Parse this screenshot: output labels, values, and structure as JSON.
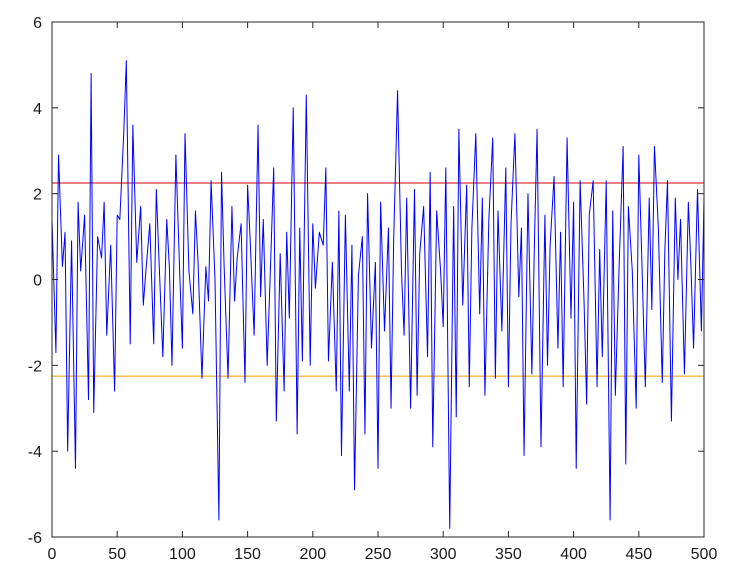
{
  "chart_data": {
    "type": "line",
    "title": "",
    "xlabel": "",
    "ylabel": "",
    "xlim": [
      0,
      500
    ],
    "ylim": [
      -6,
      6
    ],
    "grid": false,
    "legend": "none",
    "xticks": [
      0,
      50,
      100,
      150,
      200,
      250,
      300,
      350,
      400,
      450,
      500
    ],
    "yticks": [
      -6,
      -4,
      -2,
      0,
      2,
      4,
      6
    ],
    "xtick_labels": [
      "0",
      "50",
      "100",
      "150",
      "200",
      "250",
      "300",
      "350",
      "400",
      "450",
      "500"
    ],
    "ytick_labels": [
      "-6",
      "-4",
      "-2",
      "0",
      "2",
      "4",
      "6"
    ],
    "hlines": [
      {
        "y": 2.25,
        "color": "#d40000"
      },
      {
        "y": -2.25,
        "color": "#e8a000"
      }
    ],
    "series": [
      {
        "color": "#0000ff",
        "x": [
          0,
          3,
          5,
          8,
          10,
          12,
          15,
          18,
          20,
          22,
          25,
          28,
          30,
          32,
          35,
          38,
          40,
          42,
          45,
          48,
          50,
          52,
          55,
          57,
          60,
          62,
          65,
          68,
          70,
          72,
          75,
          78,
          80,
          82,
          85,
          88,
          90,
          92,
          95,
          98,
          100,
          102,
          105,
          108,
          110,
          112,
          115,
          118,
          120,
          122,
          125,
          128,
          130,
          132,
          135,
          138,
          140,
          142,
          145,
          148,
          150,
          152,
          155,
          158,
          160,
          162,
          165,
          168,
          170,
          172,
          175,
          178,
          180,
          182,
          185,
          188,
          190,
          192,
          195,
          198,
          200,
          202,
          205,
          208,
          210,
          212,
          215,
          218,
          220,
          222,
          225,
          228,
          230,
          232,
          235,
          238,
          240,
          242,
          245,
          248,
          250,
          252,
          255,
          258,
          260,
          262,
          265,
          268,
          270,
          272,
          275,
          278,
          280,
          282,
          285,
          288,
          290,
          292,
          295,
          298,
          300,
          302,
          305,
          308,
          310,
          312,
          315,
          318,
          320,
          322,
          325,
          328,
          330,
          332,
          335,
          338,
          340,
          342,
          345,
          348,
          350,
          352,
          355,
          358,
          360,
          362,
          365,
          368,
          370,
          372,
          375,
          378,
          380,
          382,
          385,
          388,
          390,
          392,
          395,
          398,
          400,
          402,
          405,
          408,
          410,
          412,
          415,
          418,
          420,
          422,
          425,
          428,
          430,
          432,
          435,
          438,
          440,
          442,
          445,
          448,
          450,
          452,
          455,
          458,
          460,
          462,
          465,
          468,
          470,
          472,
          475,
          478,
          480,
          482,
          485,
          488,
          490,
          492,
          495,
          498,
          500
        ],
        "values": [
          1.4,
          -1.7,
          2.9,
          0.3,
          1.1,
          -4.0,
          0.9,
          -4.4,
          1.8,
          0.2,
          1.5,
          -2.8,
          4.8,
          -3.1,
          1.0,
          0.5,
          1.8,
          -1.3,
          0.8,
          -2.6,
          1.5,
          1.4,
          3.4,
          5.1,
          -1.5,
          3.6,
          0.4,
          1.7,
          -0.6,
          0.2,
          1.3,
          -1.5,
          2.1,
          0.5,
          -1.8,
          1.4,
          0.3,
          -2.0,
          2.9,
          0.1,
          -1.6,
          3.4,
          0.2,
          -0.8,
          1.6,
          0.4,
          -2.3,
          0.3,
          -0.5,
          2.3,
          0.0,
          -5.6,
          2.5,
          0.3,
          -2.3,
          1.7,
          -0.5,
          0.5,
          1.3,
          -2.4,
          2.2,
          0.9,
          -1.3,
          3.6,
          -0.4,
          1.4,
          -2.0,
          0.7,
          2.6,
          -3.3,
          0.6,
          -2.6,
          1.1,
          -0.9,
          4.0,
          -3.6,
          1.2,
          -1.9,
          4.3,
          -2.0,
          1.3,
          -0.2,
          1.1,
          0.8,
          2.6,
          -1.9,
          0.4,
          -2.6,
          1.6,
          -4.1,
          1.5,
          -2.6,
          0.8,
          -4.9,
          0.1,
          1.0,
          -3.6,
          2.0,
          -1.6,
          0.4,
          -4.4,
          1.8,
          -1.2,
          1.2,
          -3.0,
          0.9,
          4.4,
          0.2,
          -1.3,
          1.9,
          -3.0,
          2.1,
          -2.7,
          0.6,
          1.7,
          -1.8,
          2.5,
          -3.9,
          1.6,
          0.2,
          -1.1,
          2.6,
          -5.8,
          1.7,
          -3.2,
          3.5,
          -0.6,
          2.2,
          -2.5,
          1.2,
          3.4,
          -0.8,
          1.9,
          -2.7,
          1.4,
          3.3,
          -2.3,
          1.6,
          -1.2,
          2.6,
          -2.5,
          1.3,
          3.4,
          -0.4,
          1.2,
          -4.1,
          2.0,
          -2.2,
          0.9,
          3.5,
          -3.9,
          1.5,
          -2.0,
          0.8,
          2.4,
          -1.6,
          1.1,
          -2.5,
          3.3,
          -0.9,
          1.8,
          -4.4,
          2.3,
          -0.5,
          -2.9,
          1.5,
          2.3,
          -2.5,
          0.7,
          -1.8,
          2.3,
          -5.6,
          1.6,
          -2.7,
          0.4,
          3.1,
          -4.3,
          1.7,
          0.2,
          -3.0,
          2.9,
          0.8,
          -2.5,
          1.9,
          -0.7,
          3.1,
          1.2,
          -2.4,
          0.7,
          2.3,
          -3.3,
          1.9,
          0.0,
          1.4,
          -2.2,
          1.8,
          0.3,
          -1.6,
          2.1,
          -1.2,
          1.9
        ]
      }
    ]
  }
}
